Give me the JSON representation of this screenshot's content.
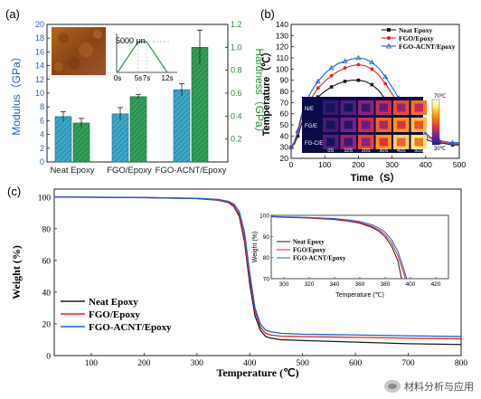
{
  "colors": {
    "neat": "#1a1a1a",
    "fgo": "#e32222",
    "acnt": "#1f5fd6",
    "modulus": "#2a62b5",
    "hardness": "#2c8a3a",
    "bar_mod": "#3da9c9",
    "bar_hard": "#34a05a"
  },
  "panel_a": {
    "label": "(a)",
    "ylabel_left": "Modulus（GPa）",
    "ylabel_right": "Hardness（GPa）",
    "inset_scale": "5000 μn",
    "inset_ticks": [
      "0s",
      "5s",
      "7s",
      "12s"
    ]
  },
  "panel_b": {
    "label": "(b)",
    "ylabel": "Temperature（℃）",
    "xlabel": "Time（S）",
    "row_labels": [
      "N/E",
      "FG/E",
      "FG-C/E"
    ],
    "col_labels": [
      "0S",
      "10S",
      "20S",
      "30S",
      "40S",
      "50S"
    ],
    "scale_max": "70℃",
    "scale_min": "30℃"
  },
  "panel_c": {
    "label": "(c)",
    "ylabel": "Weight (%)",
    "xlabel": "Temperature (℃)",
    "inset_ylabel": "Weight (%)",
    "inset_xlabel": "Temperature (℃)"
  },
  "watermark": "材料分析与应用",
  "chart_data": [
    {
      "type": "bar",
      "panel": "a",
      "categories": [
        "Neat Epoxy",
        "FGO/Epoxy",
        "FGO-ACNT/Epoxy"
      ],
      "series": [
        {
          "values": [
            6.6,
            7.0,
            10.5
          ],
          "errors": [
            0.7,
            0.9,
            0.9
          ],
          "axis": "left"
        },
        {
          "values": [
            0.34,
            0.57,
            1.0
          ],
          "errors": [
            0.04,
            0.02,
            0.15
          ],
          "axis": "right"
        }
      ],
      "ylim_left": [
        0,
        20
      ],
      "yticks_left": [
        0,
        2,
        4,
        6,
        8,
        10,
        12,
        14,
        16,
        18,
        20
      ],
      "ylim_right": [
        0,
        1.2
      ],
      "yticks_right": [
        0.2,
        0.4,
        0.6,
        0.8,
        1.0,
        1.2
      ],
      "inset": {
        "type": "line",
        "x": [
          0,
          5,
          7,
          12
        ],
        "load": [
          0,
          5000,
          5000,
          0
        ]
      }
    },
    {
      "type": "line",
      "panel": "b",
      "xlim": [
        0,
        500
      ],
      "xticks": [
        0,
        100,
        200,
        300,
        400,
        500
      ],
      "ylim": [
        20,
        140
      ],
      "yticks": [
        20,
        30,
        40,
        50,
        60,
        70,
        80,
        90,
        100,
        110,
        120,
        130,
        140
      ],
      "series": [
        {
          "name": "Neat Epoxy",
          "marker": "square",
          "color_key": "neat",
          "x": [
            0,
            10,
            20,
            30,
            40,
            60,
            80,
            100,
            120,
            140,
            160,
            180,
            200,
            220,
            240,
            260,
            280,
            300,
            320,
            340,
            360,
            380,
            400,
            420,
            440,
            460,
            480,
            500
          ],
          "y": [
            30,
            33,
            40,
            50,
            58,
            67,
            75,
            80,
            84,
            87,
            89,
            90,
            90,
            89,
            86,
            81,
            73,
            65,
            57,
            50,
            44,
            40,
            37,
            35,
            34,
            33,
            32,
            32
          ]
        },
        {
          "name": "FGO/Epoxy",
          "marker": "circle",
          "color_key": "fgo",
          "x": [
            0,
            10,
            20,
            30,
            40,
            60,
            80,
            100,
            120,
            140,
            160,
            180,
            200,
            220,
            240,
            260,
            280,
            300,
            320,
            340,
            360,
            380,
            400,
            420,
            440,
            460,
            480,
            500
          ],
          "y": [
            30,
            34,
            43,
            55,
            64,
            74,
            83,
            89,
            94,
            98,
            101,
            103,
            104,
            103,
            100,
            95,
            87,
            78,
            68,
            58,
            50,
            44,
            40,
            37,
            35,
            34,
            33,
            33
          ]
        },
        {
          "name": "FGO-ACNT/Epoxy",
          "marker": "triangle",
          "color_key": "acnt",
          "x": [
            0,
            10,
            20,
            30,
            40,
            60,
            80,
            100,
            120,
            140,
            160,
            180,
            200,
            220,
            240,
            260,
            280,
            300,
            320,
            340,
            360,
            380,
            400,
            420,
            440,
            460,
            480,
            500
          ],
          "y": [
            30,
            35,
            45,
            58,
            68,
            80,
            89,
            96,
            101,
            105,
            107,
            109,
            110,
            109,
            106,
            101,
            93,
            84,
            74,
            64,
            55,
            48,
            42,
            38,
            36,
            35,
            34,
            34
          ]
        }
      ],
      "thermal_inset": {
        "rows": [
          "N/E",
          "FG/E",
          "FG-C/E"
        ],
        "cols": [
          "0S",
          "10S",
          "20S",
          "30S",
          "40S",
          "50S"
        ],
        "heat": [
          [
            0.1,
            0.2,
            0.35,
            0.5,
            0.62,
            0.72
          ],
          [
            0.15,
            0.3,
            0.5,
            0.68,
            0.8,
            0.88
          ],
          [
            0.2,
            0.38,
            0.6,
            0.8,
            0.92,
            0.98
          ]
        ]
      }
    },
    {
      "type": "line",
      "panel": "c",
      "xlim": [
        30,
        800
      ],
      "xticks": [
        100,
        200,
        300,
        400,
        500,
        600,
        700,
        800
      ],
      "ylim": [
        0,
        105
      ],
      "yticks": [
        0,
        20,
        40,
        60,
        80,
        100
      ],
      "series": [
        {
          "name": "Neat Epoxy",
          "color_key": "neat",
          "x": [
            30,
            200,
            300,
            340,
            360,
            370,
            380,
            390,
            400,
            410,
            420,
            430,
            440,
            460,
            500,
            600,
            700,
            800
          ],
          "y": [
            100,
            99.6,
            99,
            98,
            96.5,
            94,
            88,
            72,
            45,
            25,
            16,
            12,
            11,
            10,
            9.5,
            8.5,
            7.5,
            7
          ]
        },
        {
          "name": "FGO/Epoxy",
          "color_key": "fgo",
          "x": [
            30,
            200,
            300,
            340,
            360,
            370,
            380,
            390,
            400,
            410,
            420,
            430,
            440,
            460,
            500,
            600,
            700,
            800
          ],
          "y": [
            100,
            99.7,
            99.1,
            98.2,
            96.8,
            94.5,
            89,
            74,
            48,
            28,
            18,
            14,
            13,
            12.2,
            12,
            11.5,
            11,
            10.5
          ]
        },
        {
          "name": "FGO-ACNT/Epoxy",
          "color_key": "acnt",
          "x": [
            30,
            200,
            300,
            340,
            360,
            370,
            380,
            390,
            400,
            410,
            420,
            430,
            440,
            460,
            500,
            600,
            700,
            800
          ],
          "y": [
            100,
            99.7,
            99.2,
            98.5,
            97.2,
            95.5,
            91,
            78,
            52,
            30,
            20,
            16,
            15,
            14,
            13.5,
            13,
            12.5,
            12
          ]
        }
      ],
      "inset": {
        "xlim": [
          290,
          430
        ],
        "xticks": [
          300,
          320,
          340,
          360,
          380,
          400,
          420
        ],
        "ylim": [
          70,
          100
        ],
        "yticks": [
          70,
          80,
          90,
          100
        ],
        "series": [
          {
            "name": "Neat Epoxy",
            "color_key": "neat",
            "x": [
              290,
              300,
              320,
              340,
              350,
              360,
              370,
              375,
              380,
              385,
              390,
              393
            ],
            "y": [
              99.3,
              99.1,
              98.7,
              98.0,
              97.3,
              96.3,
              94.2,
              92.5,
              89.8,
              85.5,
              78.5,
              70
            ]
          },
          {
            "name": "FGO/Epoxy",
            "color_key": "fgo",
            "x": [
              290,
              300,
              320,
              340,
              350,
              360,
              370,
              375,
              380,
              385,
              390,
              395,
              396
            ],
            "y": [
              99.4,
              99.2,
              98.8,
              98.2,
              97.5,
              96.6,
              94.7,
              93.2,
              90.8,
              87,
              81,
              72,
              70
            ]
          },
          {
            "name": "FGO-ACNT/Epoxy",
            "color_key": "acnt",
            "x": [
              290,
              300,
              320,
              340,
              350,
              360,
              370,
              375,
              380,
              385,
              390,
              395,
              397
            ],
            "y": [
              99.5,
              99.3,
              99.0,
              98.5,
              97.9,
              97.1,
              95.4,
              94.0,
              92,
              88.5,
              83,
              74,
              70
            ]
          }
        ]
      }
    }
  ]
}
